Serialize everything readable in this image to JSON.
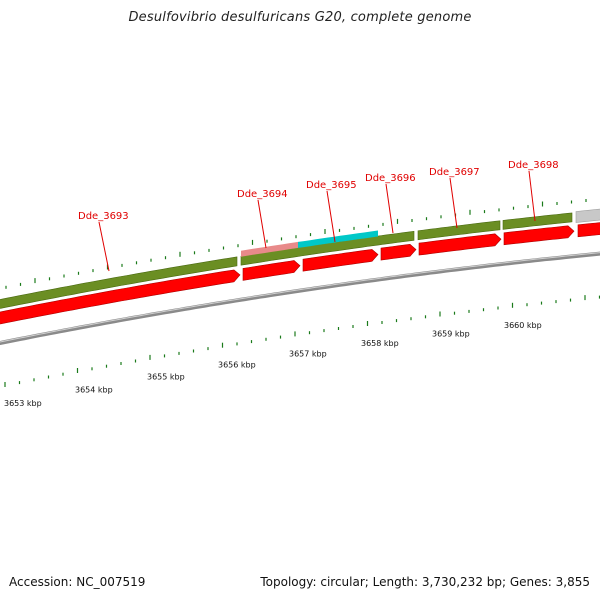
{
  "header": {
    "title": "Desulfovibrio desulfuricans G20, complete genome"
  },
  "footer": {
    "accession": "Accession: NC_007519",
    "stats": "Topology: circular; Length: 3,730,232 bp; Genes: 3,855"
  },
  "genome_map": {
    "colors": {
      "gene_label": "#e00000",
      "cds_forward": "#6b8e23",
      "cds_reverse": "#ff0000",
      "highlight_pink": "#e88a8a",
      "highlight_cyan": "#00c8c8",
      "other_feature": "#c8c8c8",
      "backbone": "#8a8a8a",
      "tick": "#1a7a1a"
    },
    "gene_labels": [
      "Dde_3693",
      "Dde_3694",
      "Dde_3695",
      "Dde_3696",
      "Dde_3697",
      "Dde_3698"
    ],
    "kbp_labels": [
      "3653 kbp",
      "3654 kbp",
      "3655 kbp",
      "3656 kbp",
      "3657 kbp",
      "3658 kbp",
      "3659 kbp",
      "3660 kbp"
    ]
  }
}
